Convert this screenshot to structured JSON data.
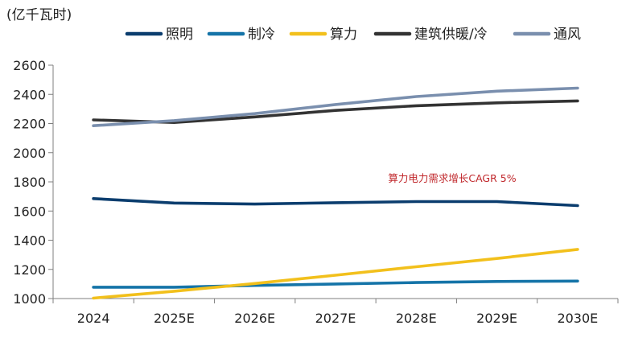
{
  "chart_data": {
    "type": "line",
    "ylabel": "(亿千瓦时)",
    "categories": [
      "2024",
      "2025E",
      "2026E",
      "2027E",
      "2028E",
      "2029E",
      "2030E"
    ],
    "ylim": [
      1000,
      2600
    ],
    "yticks": [
      1000,
      1200,
      1400,
      1600,
      1800,
      2000,
      2200,
      2400,
      2600
    ],
    "legend_position": "top",
    "grid": false,
    "series": [
      {
        "name": "照明",
        "color": "#0b3d6e",
        "values": [
          1685,
          1655,
          1648,
          1657,
          1665,
          1665,
          1637
        ]
      },
      {
        "name": "制冷",
        "color": "#1574a8",
        "values": [
          1078,
          1078,
          1090,
          1100,
          1110,
          1117,
          1120
        ]
      },
      {
        "name": "算力",
        "color": "#f2c01c",
        "values": [
          1003,
          1050,
          1103,
          1160,
          1218,
          1275,
          1337
        ]
      },
      {
        "name": "建筑供暖/冷",
        "color": "#333333",
        "values": [
          2225,
          2207,
          2245,
          2290,
          2322,
          2342,
          2355
        ]
      },
      {
        "name": "通风",
        "color": "#7a8fae",
        "values": [
          2185,
          2220,
          2268,
          2330,
          2385,
          2422,
          2443
        ]
      }
    ],
    "annotations": [
      {
        "text": "算力电力需求增长CAGR 5%",
        "color": "#c0282c"
      }
    ]
  }
}
